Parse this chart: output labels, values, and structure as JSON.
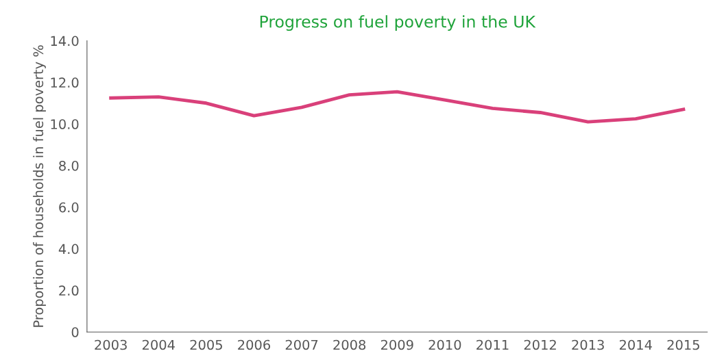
{
  "chart_data": {
    "type": "line",
    "title": "Progress on fuel poverty in the UK",
    "ylabel": "Proportion of households in fuel poverty %",
    "categories": [
      "2003",
      "2004",
      "2005",
      "2006",
      "2007",
      "2008",
      "2009",
      "2010",
      "2011",
      "2012",
      "2013",
      "2014",
      "2015"
    ],
    "series": [
      {
        "color": "#d9407a",
        "values": [
          11.25,
          11.3,
          11.0,
          10.4,
          10.8,
          11.4,
          11.55,
          11.15,
          10.75,
          10.55,
          10.1,
          10.25,
          10.7
        ]
      }
    ],
    "ylim": [
      0,
      14
    ],
    "yticks": [
      {
        "value": 0,
        "label": "0"
      },
      {
        "value": 2,
        "label": "2.0"
      },
      {
        "value": 4,
        "label": "4.0"
      },
      {
        "value": 6,
        "label": "6.0"
      },
      {
        "value": 8,
        "label": "8.0"
      },
      {
        "value": 10,
        "label": "10.0"
      },
      {
        "value": 12,
        "label": "12.0"
      },
      {
        "value": 14,
        "label": "14.0"
      }
    ],
    "grid": false,
    "legend": false,
    "marker": "none",
    "line_style": "solid"
  }
}
